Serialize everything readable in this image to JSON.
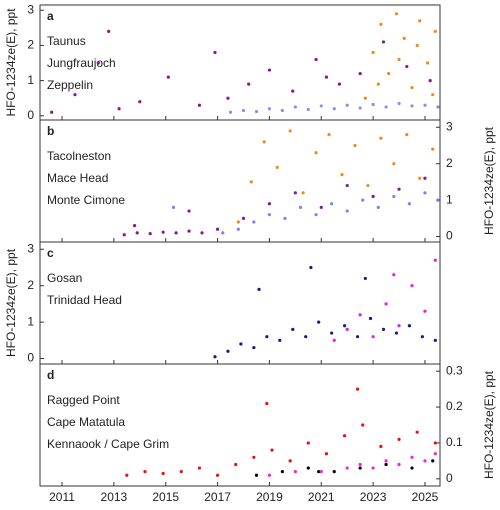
{
  "chart_data": [
    {
      "type": "scatter",
      "panel_label": "a",
      "ylabel": "HFO-1234ze(E), ppt",
      "y_axis_side": "left",
      "ylim": [
        -0.12,
        3.15
      ],
      "yticks": [
        0,
        1,
        2,
        3
      ],
      "series": [
        {
          "name": "Taunus",
          "color": "#f08a1c",
          "x": [
            2022.7,
            2023.0,
            2023.3,
            2023.6,
            2023.9,
            2024.2,
            2024.5,
            2024.8,
            2025.1,
            2025.4,
            2023.2,
            2024.0,
            2024.7,
            2025.3
          ],
          "values": [
            0.5,
            1.8,
            2.6,
            1.2,
            2.9,
            2.2,
            0.8,
            2.7,
            1.5,
            2.4,
            0.9,
            1.6,
            2.0,
            0.6
          ]
        },
        {
          "name": "Jungfraujoch",
          "color": "#86198a",
          "x": [
            2010.6,
            2011.5,
            2012.4,
            2013.2,
            2014.0,
            2015.1,
            2016.3,
            2017.4,
            2018.2,
            2019.0,
            2019.9,
            2020.8,
            2021.7,
            2022.5,
            2023.4,
            2024.3,
            2025.2,
            2012.8,
            2016.9,
            2021.2
          ],
          "values": [
            0.1,
            0.6,
            1.5,
            0.2,
            0.4,
            1.1,
            0.3,
            0.5,
            0.9,
            1.3,
            0.7,
            1.6,
            0.9,
            1.2,
            2.1,
            1.4,
            1.0,
            2.4,
            1.8,
            1.1
          ]
        },
        {
          "name": "Zeppelin",
          "color": "#8c8cf2",
          "x": [
            2017.5,
            2018.0,
            2018.5,
            2019.0,
            2019.5,
            2020.0,
            2020.5,
            2021.0,
            2021.5,
            2022.0,
            2022.5,
            2023.0,
            2023.5,
            2024.0,
            2024.5,
            2025.0,
            2025.5
          ],
          "values": [
            0.1,
            0.15,
            0.12,
            0.2,
            0.15,
            0.25,
            0.18,
            0.28,
            0.2,
            0.3,
            0.22,
            0.32,
            0.25,
            0.35,
            0.28,
            0.3,
            0.25
          ]
        }
      ]
    },
    {
      "type": "scatter",
      "panel_label": "b",
      "ylabel": "HFO-1234ze(E), ppt",
      "y_axis_side": "right",
      "ylim": [
        -0.15,
        3.2
      ],
      "yticks": [
        0,
        1,
        2,
        3
      ],
      "series": [
        {
          "name": "Tacolneston",
          "color": "#f08a1c",
          "x": [
            2017.8,
            2018.3,
            2018.8,
            2019.3,
            2019.8,
            2020.3,
            2020.8,
            2021.3,
            2021.8,
            2022.3,
            2022.8,
            2023.3,
            2023.8,
            2024.3,
            2024.8,
            2025.3
          ],
          "values": [
            0.4,
            1.5,
            2.6,
            1.9,
            2.9,
            1.2,
            2.3,
            2.8,
            1.7,
            2.5,
            1.4,
            2.7,
            2.0,
            2.8,
            1.6,
            2.4
          ]
        },
        {
          "name": "Mace Head",
          "color": "#86198a",
          "x": [
            2013.4,
            2013.9,
            2014.4,
            2014.9,
            2015.4,
            2015.9,
            2016.4,
            2017.0,
            2018.0,
            2019.0,
            2020.0,
            2021.0,
            2022.0,
            2023.0,
            2024.0,
            2025.0,
            2013.8,
            2015.9
          ],
          "values": [
            0.05,
            0.1,
            0.08,
            0.12,
            0.1,
            0.15,
            0.1,
            0.2,
            0.5,
            0.9,
            1.2,
            0.8,
            1.4,
            1.1,
            1.3,
            1.6,
            0.3,
            0.7
          ]
        },
        {
          "name": "Monte Cimone",
          "color": "#8080f0",
          "x": [
            2017.2,
            2017.8,
            2018.4,
            2019.0,
            2019.6,
            2020.2,
            2020.8,
            2021.4,
            2022.0,
            2022.6,
            2023.2,
            2023.8,
            2024.4,
            2025.0,
            2025.5,
            2015.3
          ],
          "values": [
            0.1,
            0.2,
            0.4,
            0.6,
            0.5,
            0.8,
            0.6,
            0.9,
            0.7,
            1.0,
            0.8,
            1.1,
            0.9,
            1.2,
            1.0,
            0.8
          ]
        }
      ]
    },
    {
      "type": "scatter",
      "panel_label": "c",
      "ylabel": "HFO-1234ze(E), ppt",
      "y_axis_side": "left",
      "ylim": [
        -0.15,
        3.2
      ],
      "yticks": [
        0,
        1,
        2,
        3
      ],
      "series": [
        {
          "name": "Gosan",
          "color": "#e020e0",
          "x": [
            2021.5,
            2022.0,
            2022.5,
            2023.0,
            2023.5,
            2024.0,
            2024.5,
            2025.0,
            2025.4,
            2023.8
          ],
          "values": [
            0.5,
            0.8,
            1.2,
            0.6,
            1.5,
            0.9,
            2.0,
            1.3,
            2.7,
            2.3
          ]
        },
        {
          "name": "Trinidad Head",
          "color": "#1a1a80",
          "x": [
            2016.9,
            2017.4,
            2017.9,
            2018.4,
            2018.9,
            2019.4,
            2019.9,
            2020.4,
            2020.9,
            2021.4,
            2021.9,
            2022.4,
            2022.9,
            2023.4,
            2023.9,
            2024.4,
            2024.9,
            2025.4,
            2018.6,
            2020.6,
            2022.7
          ],
          "values": [
            0.05,
            0.2,
            0.4,
            0.3,
            0.6,
            0.5,
            0.8,
            0.6,
            1.0,
            0.7,
            0.9,
            0.6,
            1.1,
            0.8,
            0.7,
            0.9,
            0.6,
            0.5,
            1.9,
            2.5,
            2.2
          ]
        }
      ]
    },
    {
      "type": "scatter",
      "panel_label": "d",
      "ylabel": "HFO-1234ze(E), ppt",
      "y_axis_side": "right",
      "ylim": [
        -0.02,
        0.32
      ],
      "yticks": [
        0,
        0.1,
        0.2,
        0.3
      ],
      "xlim": [
        2010.15,
        2025.58
      ],
      "xticks": [
        2011,
        2013,
        2015,
        2017,
        2019,
        2021,
        2023,
        2025
      ],
      "series": [
        {
          "name": "Ragged Point",
          "color": "#e81010",
          "x": [
            2013.5,
            2014.2,
            2014.9,
            2015.6,
            2016.3,
            2017.0,
            2017.7,
            2018.4,
            2019.1,
            2019.8,
            2020.5,
            2021.2,
            2021.9,
            2022.6,
            2023.3,
            2024.0,
            2024.7,
            2025.4,
            2018.9,
            2022.4
          ],
          "values": [
            0.01,
            0.02,
            0.015,
            0.02,
            0.03,
            0.01,
            0.04,
            0.06,
            0.08,
            0.05,
            0.1,
            0.07,
            0.12,
            0.15,
            0.09,
            0.11,
            0.13,
            0.1,
            0.21,
            0.25
          ]
        },
        {
          "name": "Cape Matatula",
          "color": "#000000",
          "x": [
            2018.5,
            2019.5,
            2020.5,
            2020.9,
            2021.5,
            2022.5,
            2023.5,
            2024.5,
            2025.3
          ],
          "values": [
            0.01,
            0.02,
            0.03,
            0.02,
            0.02,
            0.03,
            0.04,
            0.03,
            0.05
          ]
        },
        {
          "name": "Kennaook / Cape Grim",
          "color": "#f020e0",
          "x": [
            2019.0,
            2020.0,
            2021.0,
            2022.0,
            2022.5,
            2023.0,
            2023.5,
            2024.0,
            2024.5,
            2025.0,
            2025.4
          ],
          "values": [
            0.01,
            0.02,
            0.02,
            0.03,
            0.04,
            0.03,
            0.05,
            0.04,
            0.06,
            0.05,
            0.07
          ]
        }
      ]
    }
  ]
}
